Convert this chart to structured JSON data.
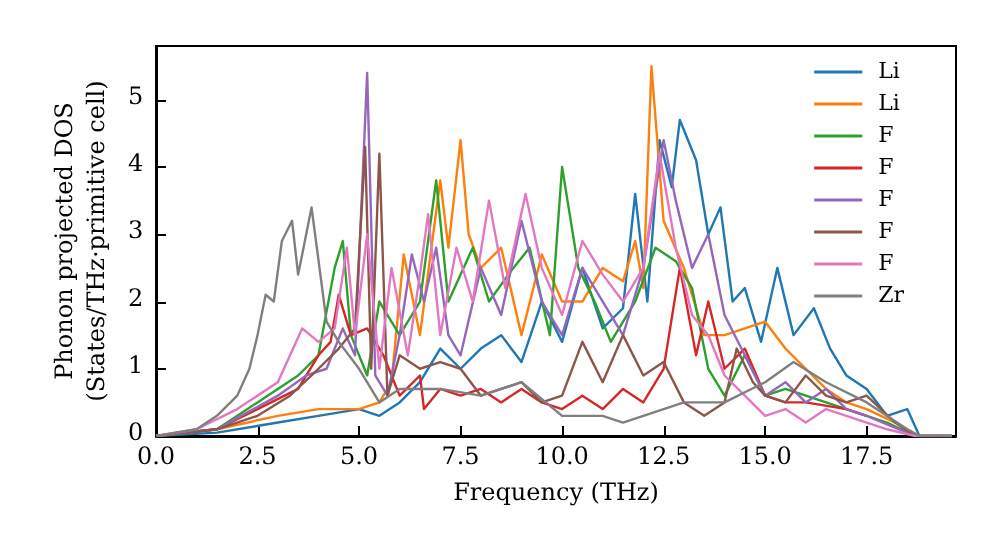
{
  "chart_data": {
    "type": "line",
    "xlabel": "Frequency (THz)",
    "ylabel": "Phonon projected DOS\n(States/THz·primitive cell)",
    "xlim": [
      0,
      19.7
    ],
    "ylim": [
      0,
      5.8
    ],
    "xticks": [
      {
        "value": 0,
        "label": "0.0"
      },
      {
        "value": 2.5,
        "label": "2.5"
      },
      {
        "value": 5,
        "label": "5.0"
      },
      {
        "value": 7.5,
        "label": "7.5"
      },
      {
        "value": 10,
        "label": "10.0"
      },
      {
        "value": 12.5,
        "label": "12.5"
      },
      {
        "value": 15,
        "label": "15.0"
      },
      {
        "value": 17.5,
        "label": "17.5"
      }
    ],
    "yticks": [
      0,
      1,
      2,
      3,
      4,
      5
    ],
    "grid": false,
    "legend": "top right",
    "marker": "none",
    "line_style": "solid",
    "series": [
      {
        "name": "Li",
        "color": "#1f77b4",
        "x": [
          0,
          1.5,
          3,
          4,
          5,
          5.5,
          6,
          6.5,
          7,
          7.5,
          8,
          8.5,
          9,
          9.5,
          10,
          10.5,
          11,
          11.5,
          11.8,
          12.1,
          12.4,
          12.7,
          12.9,
          13.3,
          13.6,
          13.9,
          14.2,
          14.5,
          14.9,
          15.3,
          15.7,
          16.2,
          16.6,
          17,
          17.5,
          18,
          18.5,
          18.8,
          19.6
        ],
        "values": [
          0,
          0.05,
          0.2,
          0.3,
          0.4,
          0.3,
          0.5,
          0.8,
          1.3,
          1,
          1.3,
          1.5,
          1.1,
          2,
          1.4,
          2.5,
          1.6,
          1.9,
          3.6,
          2,
          4.4,
          3.7,
          4.7,
          4.1,
          3,
          3.4,
          2,
          2.2,
          1.4,
          2.5,
          1.5,
          1.9,
          1.3,
          0.9,
          0.7,
          0.3,
          0.4,
          0,
          0
        ]
      },
      {
        "name": "Li",
        "color": "#ff7f0e",
        "x": [
          0,
          1.5,
          3,
          4,
          5,
          5.5,
          5.8,
          6.1,
          6.5,
          7,
          7.2,
          7.5,
          7.7,
          8,
          8.5,
          9,
          9.5,
          10,
          10.5,
          11,
          11.5,
          11.8,
          12,
          12.2,
          12.5,
          13,
          13.5,
          14,
          15,
          15.5,
          16,
          16.5,
          17,
          17.5,
          18.2,
          18.8,
          19.6
        ],
        "values": [
          0,
          0.1,
          0.3,
          0.4,
          0.4,
          0.5,
          0.8,
          2.7,
          1.5,
          3.8,
          2.8,
          4.4,
          3,
          2.5,
          2.8,
          1.5,
          2.7,
          2,
          2,
          2.5,
          2.3,
          2.9,
          2.2,
          5.5,
          3.2,
          2.5,
          1.5,
          1.5,
          1.7,
          1.3,
          1,
          0.7,
          0.5,
          0.4,
          0.2,
          0,
          0
        ]
      },
      {
        "name": "F",
        "color": "#2ca02c",
        "x": [
          0,
          1.5,
          2.5,
          3.5,
          4,
          4.4,
          4.6,
          4.8,
          5.2,
          5.5,
          6,
          6.5,
          6.9,
          7.2,
          7.8,
          8.2,
          8.8,
          9.2,
          9.7,
          10,
          10.4,
          10.8,
          11.2,
          11.8,
          12.3,
          12.8,
          13.2,
          13.6,
          14,
          14.5,
          15,
          15.5,
          16,
          17,
          18,
          18.7,
          19.6
        ],
        "values": [
          0,
          0.1,
          0.5,
          0.9,
          1.2,
          2.5,
          2.9,
          1.5,
          0.9,
          2,
          1.5,
          2,
          3.8,
          2,
          2.8,
          2,
          2.5,
          2.8,
          1.5,
          4,
          2.5,
          2,
          1.4,
          2,
          2.8,
          2.6,
          2.2,
          1,
          0.6,
          1.2,
          0.6,
          0.7,
          0.6,
          0.4,
          0.2,
          0,
          0
        ]
      },
      {
        "name": "F",
        "color": "#d62728",
        "x": [
          0,
          1.5,
          2.5,
          3.5,
          4,
          4.3,
          4.5,
          4.8,
          5.2,
          5.6,
          6,
          6.5,
          6.6,
          7,
          7.5,
          8,
          8.5,
          9,
          9.5,
          10,
          10.5,
          11,
          11.5,
          12,
          12.5,
          12.9,
          13.3,
          13.6,
          14,
          14.5,
          15,
          15.5,
          16,
          17,
          17.5
        ],
        "values": [
          0,
          0.1,
          0.4,
          0.7,
          1.2,
          1.4,
          2.1,
          1.5,
          1.6,
          1.2,
          0.6,
          0.9,
          0.4,
          0.7,
          0.6,
          0.7,
          0.5,
          0.7,
          0.5,
          0.4,
          0.6,
          0.4,
          0.7,
          0.5,
          1,
          2.5,
          1.2,
          2,
          1,
          1.3,
          0.6,
          0.5,
          0.5,
          0.4,
          0.3
        ]
      },
      {
        "name": "F",
        "color": "#9467bd",
        "x": [
          0,
          1.5,
          3,
          3.7,
          4.2,
          4.6,
          4.9,
          5.2,
          5.4,
          5.7,
          6,
          6.3,
          6.6,
          6.9,
          7.2,
          7.5,
          8,
          8.5,
          9,
          9.5,
          10,
          10.5,
          11,
          11.5,
          12,
          12.5,
          12.8,
          13.2,
          13.6,
          14,
          14.5,
          15,
          15.5,
          16,
          16.5,
          17,
          17.5,
          18.3,
          18.7,
          19.6
        ],
        "values": [
          0,
          0.1,
          0.6,
          0.9,
          1,
          1.6,
          1.2,
          5.4,
          0.9,
          0.6,
          1.5,
          2.7,
          2,
          2.8,
          1.5,
          1.2,
          2.5,
          1.8,
          3.2,
          2,
          1.5,
          2.5,
          2,
          1.5,
          2.5,
          4.4,
          3.5,
          2.5,
          3,
          1.8,
          1.2,
          0.6,
          0.8,
          0.5,
          0.7,
          0.4,
          0.3,
          0.1,
          0,
          0
        ]
      },
      {
        "name": "F",
        "color": "#8c564b",
        "x": [
          0,
          1.5,
          2.5,
          3.3,
          4,
          4.5,
          4.9,
          5.15,
          5.3,
          5.5,
          5.7,
          6,
          6.5,
          7,
          7.5,
          8,
          8.5,
          9,
          9.5,
          10,
          10.5,
          11,
          11.5,
          12,
          12.5,
          13,
          13.5,
          14,
          14.3,
          14.7,
          15,
          15.5,
          16,
          16.5,
          17,
          17.5,
          18.2,
          18.7,
          19.6
        ],
        "values": [
          0,
          0.1,
          0.3,
          0.6,
          1,
          1.3,
          1.6,
          4.3,
          1,
          4.2,
          0.6,
          1.2,
          1,
          1.1,
          1,
          0.6,
          0.7,
          0.8,
          0.5,
          0.6,
          1.4,
          0.8,
          1.5,
          0.9,
          1.1,
          0.5,
          0.3,
          0.5,
          1.3,
          0.8,
          0.6,
          0.5,
          0.9,
          0.6,
          0.5,
          0.6,
          0.2,
          0,
          0
        ]
      },
      {
        "name": "F",
        "color": "#e377c2",
        "x": [
          0,
          1,
          2,
          3,
          3.6,
          4,
          4.4,
          4.7,
          4.9,
          5.2,
          5.5,
          5.8,
          6.2,
          6.5,
          6.7,
          7,
          7.4,
          7.8,
          8.2,
          8.6,
          9.1,
          9.5,
          10,
          10.5,
          11,
          11.5,
          12,
          12.4,
          12.8,
          13.2,
          13.6,
          14,
          14.5,
          15,
          15.5,
          16,
          16.5,
          17,
          17.5,
          18,
          18.7,
          19.6
        ],
        "values": [
          0,
          0.1,
          0.4,
          0.8,
          1.6,
          1.4,
          1.6,
          2.8,
          1.5,
          3,
          1,
          2.5,
          1.2,
          2.4,
          3.3,
          1.5,
          2.8,
          2,
          3.5,
          2.2,
          3.6,
          2.5,
          1.8,
          2.9,
          2.4,
          2,
          2.5,
          4.2,
          2.8,
          1.8,
          1.5,
          0.9,
          0.6,
          0.3,
          0.4,
          0.2,
          0.4,
          0.3,
          0.2,
          0.1,
          0,
          0
        ]
      },
      {
        "name": "Zr",
        "color": "#7f7f7f",
        "x": [
          0,
          1,
          1.5,
          2,
          2.3,
          2.5,
          2.7,
          2.9,
          3.1,
          3.35,
          3.5,
          3.6,
          3.83,
          4.2,
          4.5,
          5,
          5.5,
          6,
          7,
          8,
          9,
          10,
          11,
          11.5,
          12,
          13,
          14,
          15,
          15.7,
          16.5,
          17.5,
          18.5,
          18.8,
          19.6
        ],
        "values": [
          0,
          0.1,
          0.3,
          0.6,
          1,
          1.5,
          2.1,
          2,
          2.9,
          3.2,
          2.4,
          2.7,
          3.4,
          1.7,
          1.4,
          1,
          0.5,
          0.7,
          0.7,
          0.6,
          0.8,
          0.3,
          0.3,
          0.2,
          0.3,
          0.5,
          0.5,
          0.8,
          1.1,
          0.8,
          0.5,
          0.1,
          0,
          0
        ]
      }
    ]
  }
}
